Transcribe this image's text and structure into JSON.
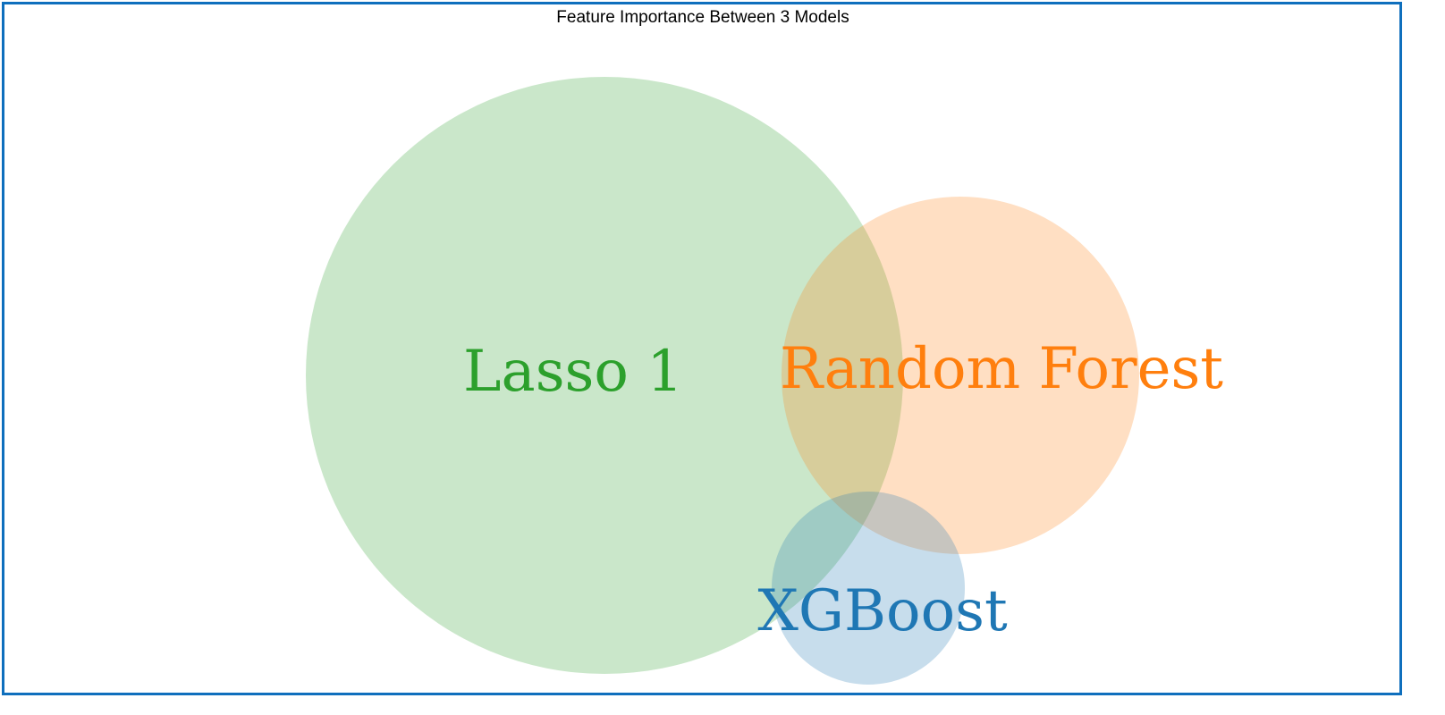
{
  "title": "Feature Importance Between 3 Models",
  "sets": [
    {
      "key": "lasso",
      "label": "Lasso 1",
      "fill": "#2ca02c",
      "text_color": "#2ca02c"
    },
    {
      "key": "rf",
      "label": "Random Forest",
      "fill": "#ff7f0e",
      "text_color": "#ff7f0e"
    },
    {
      "key": "xgb",
      "label": "XGBoost",
      "fill": "#1f77b4",
      "text_color": "#1f77b4"
    }
  ],
  "colors": {
    "border": "#0f6fbd",
    "background": "#ffffff"
  }
}
